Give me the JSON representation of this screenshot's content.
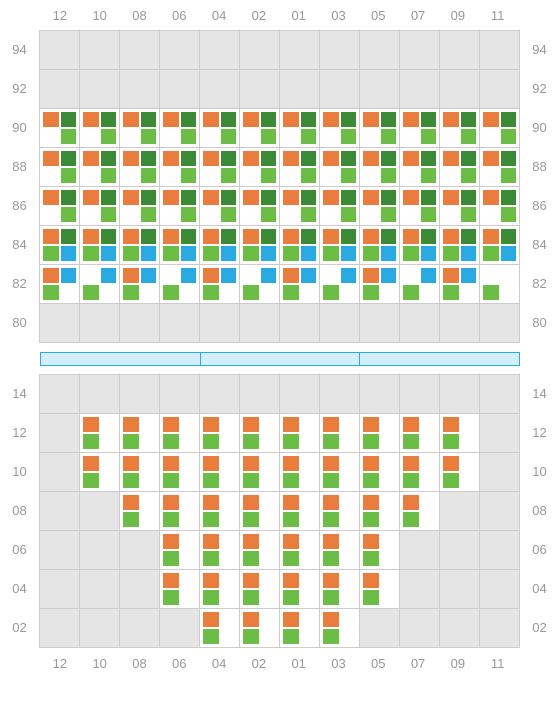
{
  "columns": [
    "12",
    "10",
    "08",
    "06",
    "04",
    "02",
    "01",
    "03",
    "05",
    "07",
    "09",
    "11"
  ],
  "upper": {
    "rows": [
      "94",
      "92",
      "90",
      "88",
      "86",
      "84",
      "82",
      "80"
    ],
    "cells": [
      [
        null,
        null,
        null,
        null,
        null,
        null,
        null,
        null,
        null,
        null,
        null,
        null
      ],
      [
        null,
        null,
        null,
        null,
        null,
        null,
        null,
        null,
        null,
        null,
        null,
        null
      ],
      [
        [
          "orange",
          "dgreen",
          "none",
          "green"
        ],
        [
          "orange",
          "dgreen",
          "none",
          "green"
        ],
        [
          "orange",
          "dgreen",
          "none",
          "green"
        ],
        [
          "orange",
          "dgreen",
          "none",
          "green"
        ],
        [
          "orange",
          "dgreen",
          "none",
          "green"
        ],
        [
          "orange",
          "dgreen",
          "none",
          "green"
        ],
        [
          "orange",
          "dgreen",
          "none",
          "green"
        ],
        [
          "orange",
          "dgreen",
          "none",
          "green"
        ],
        [
          "orange",
          "dgreen",
          "none",
          "green"
        ],
        [
          "orange",
          "dgreen",
          "none",
          "green"
        ],
        [
          "orange",
          "dgreen",
          "none",
          "green"
        ],
        [
          "orange",
          "dgreen",
          "none",
          "green"
        ]
      ],
      [
        [
          "orange",
          "dgreen",
          "none",
          "green"
        ],
        [
          "orange",
          "dgreen",
          "none",
          "green"
        ],
        [
          "orange",
          "dgreen",
          "none",
          "green"
        ],
        [
          "orange",
          "dgreen",
          "none",
          "green"
        ],
        [
          "orange",
          "dgreen",
          "none",
          "green"
        ],
        [
          "orange",
          "dgreen",
          "none",
          "green"
        ],
        [
          "orange",
          "dgreen",
          "none",
          "green"
        ],
        [
          "orange",
          "dgreen",
          "none",
          "green"
        ],
        [
          "orange",
          "dgreen",
          "none",
          "green"
        ],
        [
          "orange",
          "dgreen",
          "none",
          "green"
        ],
        [
          "orange",
          "dgreen",
          "none",
          "green"
        ],
        [
          "orange",
          "dgreen",
          "none",
          "green"
        ]
      ],
      [
        [
          "orange",
          "dgreen",
          "none",
          "green"
        ],
        [
          "orange",
          "dgreen",
          "none",
          "green"
        ],
        [
          "orange",
          "dgreen",
          "none",
          "green"
        ],
        [
          "orange",
          "dgreen",
          "none",
          "green"
        ],
        [
          "orange",
          "dgreen",
          "none",
          "green"
        ],
        [
          "orange",
          "dgreen",
          "none",
          "green"
        ],
        [
          "orange",
          "dgreen",
          "none",
          "green"
        ],
        [
          "orange",
          "dgreen",
          "none",
          "green"
        ],
        [
          "orange",
          "dgreen",
          "none",
          "green"
        ],
        [
          "orange",
          "dgreen",
          "none",
          "green"
        ],
        [
          "orange",
          "dgreen",
          "none",
          "green"
        ],
        [
          "orange",
          "dgreen",
          "none",
          "green"
        ]
      ],
      [
        [
          "orange",
          "dgreen",
          "green",
          "blue"
        ],
        [
          "orange",
          "dgreen",
          "green",
          "blue"
        ],
        [
          "orange",
          "dgreen",
          "green",
          "blue"
        ],
        [
          "orange",
          "dgreen",
          "green",
          "blue"
        ],
        [
          "orange",
          "dgreen",
          "green",
          "blue"
        ],
        [
          "orange",
          "dgreen",
          "green",
          "blue"
        ],
        [
          "orange",
          "dgreen",
          "green",
          "blue"
        ],
        [
          "orange",
          "dgreen",
          "green",
          "blue"
        ],
        [
          "orange",
          "dgreen",
          "green",
          "blue"
        ],
        [
          "orange",
          "dgreen",
          "green",
          "blue"
        ],
        [
          "orange",
          "dgreen",
          "green",
          "blue"
        ],
        [
          "orange",
          "dgreen",
          "green",
          "blue"
        ]
      ],
      [
        [
          "orange",
          "blue",
          "green",
          "none"
        ],
        [
          "none",
          "blue",
          "green",
          "none"
        ],
        [
          "orange",
          "blue",
          "green",
          "none"
        ],
        [
          "none",
          "blue",
          "green",
          "none"
        ],
        [
          "orange",
          "blue",
          "green",
          "none"
        ],
        [
          "none",
          "blue",
          "green",
          "none"
        ],
        [
          "orange",
          "blue",
          "green",
          "none"
        ],
        [
          "none",
          "blue",
          "green",
          "none"
        ],
        [
          "orange",
          "blue",
          "green",
          "none"
        ],
        [
          "none",
          "blue",
          "green",
          "none"
        ],
        [
          "orange",
          "blue",
          "green",
          "none"
        ],
        [
          "none",
          "none",
          "green",
          "none"
        ]
      ],
      [
        null,
        null,
        null,
        null,
        null,
        null,
        null,
        null,
        null,
        null,
        null,
        null
      ]
    ]
  },
  "lower": {
    "rows": [
      "14",
      "12",
      "10",
      "08",
      "06",
      "04",
      "02"
    ],
    "cells": [
      [
        null,
        null,
        null,
        null,
        null,
        null,
        null,
        null,
        null,
        null,
        null,
        null
      ],
      [
        null,
        [
          "orange",
          "none",
          "green",
          "none"
        ],
        [
          "orange",
          "none",
          "green",
          "none"
        ],
        [
          "orange",
          "none",
          "green",
          "none"
        ],
        [
          "orange",
          "none",
          "green",
          "none"
        ],
        [
          "orange",
          "none",
          "green",
          "none"
        ],
        [
          "orange",
          "none",
          "green",
          "none"
        ],
        [
          "orange",
          "none",
          "green",
          "none"
        ],
        [
          "orange",
          "none",
          "green",
          "none"
        ],
        [
          "orange",
          "none",
          "green",
          "none"
        ],
        [
          "orange",
          "none",
          "green",
          "none"
        ],
        null
      ],
      [
        null,
        [
          "orange",
          "none",
          "green",
          "none"
        ],
        [
          "orange",
          "none",
          "green",
          "none"
        ],
        [
          "orange",
          "none",
          "green",
          "none"
        ],
        [
          "orange",
          "none",
          "green",
          "none"
        ],
        [
          "orange",
          "none",
          "green",
          "none"
        ],
        [
          "orange",
          "none",
          "green",
          "none"
        ],
        [
          "orange",
          "none",
          "green",
          "none"
        ],
        [
          "orange",
          "none",
          "green",
          "none"
        ],
        [
          "orange",
          "none",
          "green",
          "none"
        ],
        [
          "orange",
          "none",
          "green",
          "none"
        ],
        null
      ],
      [
        null,
        null,
        [
          "orange",
          "none",
          "green",
          "none"
        ],
        [
          "orange",
          "none",
          "green",
          "none"
        ],
        [
          "orange",
          "none",
          "green",
          "none"
        ],
        [
          "orange",
          "none",
          "green",
          "none"
        ],
        [
          "orange",
          "none",
          "green",
          "none"
        ],
        [
          "orange",
          "none",
          "green",
          "none"
        ],
        [
          "orange",
          "none",
          "green",
          "none"
        ],
        [
          "orange",
          "none",
          "green",
          "none"
        ],
        null,
        null
      ],
      [
        null,
        null,
        null,
        [
          "orange",
          "none",
          "green",
          "none"
        ],
        [
          "orange",
          "none",
          "green",
          "none"
        ],
        [
          "orange",
          "none",
          "green",
          "none"
        ],
        [
          "orange",
          "none",
          "green",
          "none"
        ],
        [
          "orange",
          "none",
          "green",
          "none"
        ],
        [
          "orange",
          "none",
          "green",
          "none"
        ],
        null,
        null,
        null
      ],
      [
        null,
        null,
        null,
        [
          "orange",
          "none",
          "green",
          "none"
        ],
        [
          "orange",
          "none",
          "green",
          "none"
        ],
        [
          "orange",
          "none",
          "green",
          "none"
        ],
        [
          "orange",
          "none",
          "green",
          "none"
        ],
        [
          "orange",
          "none",
          "green",
          "none"
        ],
        [
          "orange",
          "none",
          "green",
          "none"
        ],
        null,
        null,
        null
      ],
      [
        null,
        null,
        null,
        null,
        [
          "orange",
          "none",
          "green",
          "none"
        ],
        [
          "orange",
          "none",
          "green",
          "none"
        ],
        [
          "orange",
          "none",
          "green",
          "none"
        ],
        [
          "orange",
          "none",
          "green",
          "none"
        ],
        null,
        null,
        null,
        null
      ]
    ]
  },
  "colors": {
    "orange": "#e87d3d",
    "green": "#6bbd45",
    "dgreen": "#3a8a36",
    "blue": "#29abe2",
    "empty_bg": "#e5e5e5",
    "grid_line": "#cccccc",
    "label": "#999999",
    "divider_bg": "#d4effc"
  },
  "divider_segments": 3
}
